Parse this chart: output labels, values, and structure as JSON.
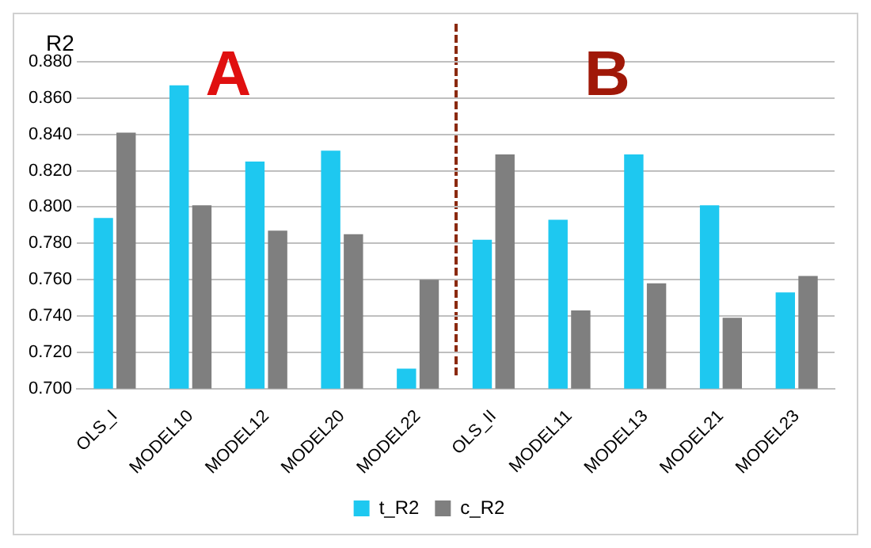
{
  "chart_data": {
    "type": "bar",
    "ylabel": "R2",
    "categories": [
      "OLS_I",
      "MODEL10",
      "MODEL12",
      "MODEL20",
      "MODEL22",
      "OLS_II",
      "MODEL11",
      "MODEL13",
      "MODEL21",
      "MODEL23"
    ],
    "series": [
      {
        "name": "t_R2",
        "color": "#1ec8f0",
        "values": [
          0.794,
          0.867,
          0.825,
          0.831,
          0.711,
          0.782,
          0.793,
          0.829,
          0.801,
          0.753
        ]
      },
      {
        "name": "c_R2",
        "color": "#7f7f7f",
        "values": [
          0.841,
          0.801,
          0.787,
          0.785,
          0.76,
          0.829,
          0.743,
          0.758,
          0.739,
          0.762
        ]
      }
    ],
    "ylim": [
      0.7,
      0.88
    ],
    "yticks": [
      {
        "value": 0.7,
        "label": "0.700"
      },
      {
        "value": 0.72,
        "label": "0.720"
      },
      {
        "value": 0.74,
        "label": "0.740"
      },
      {
        "value": 0.76,
        "label": "0.760"
      },
      {
        "value": 0.78,
        "label": "0.780"
      },
      {
        "value": 0.8,
        "label": "0.800"
      },
      {
        "value": 0.82,
        "label": "0.820"
      },
      {
        "value": 0.84,
        "label": "0.840"
      },
      {
        "value": 0.86,
        "label": "0.860"
      },
      {
        "value": 0.88,
        "label": "0.880"
      }
    ],
    "annotations": [
      "A",
      "B"
    ],
    "grid": "y",
    "legend": "bottom"
  }
}
